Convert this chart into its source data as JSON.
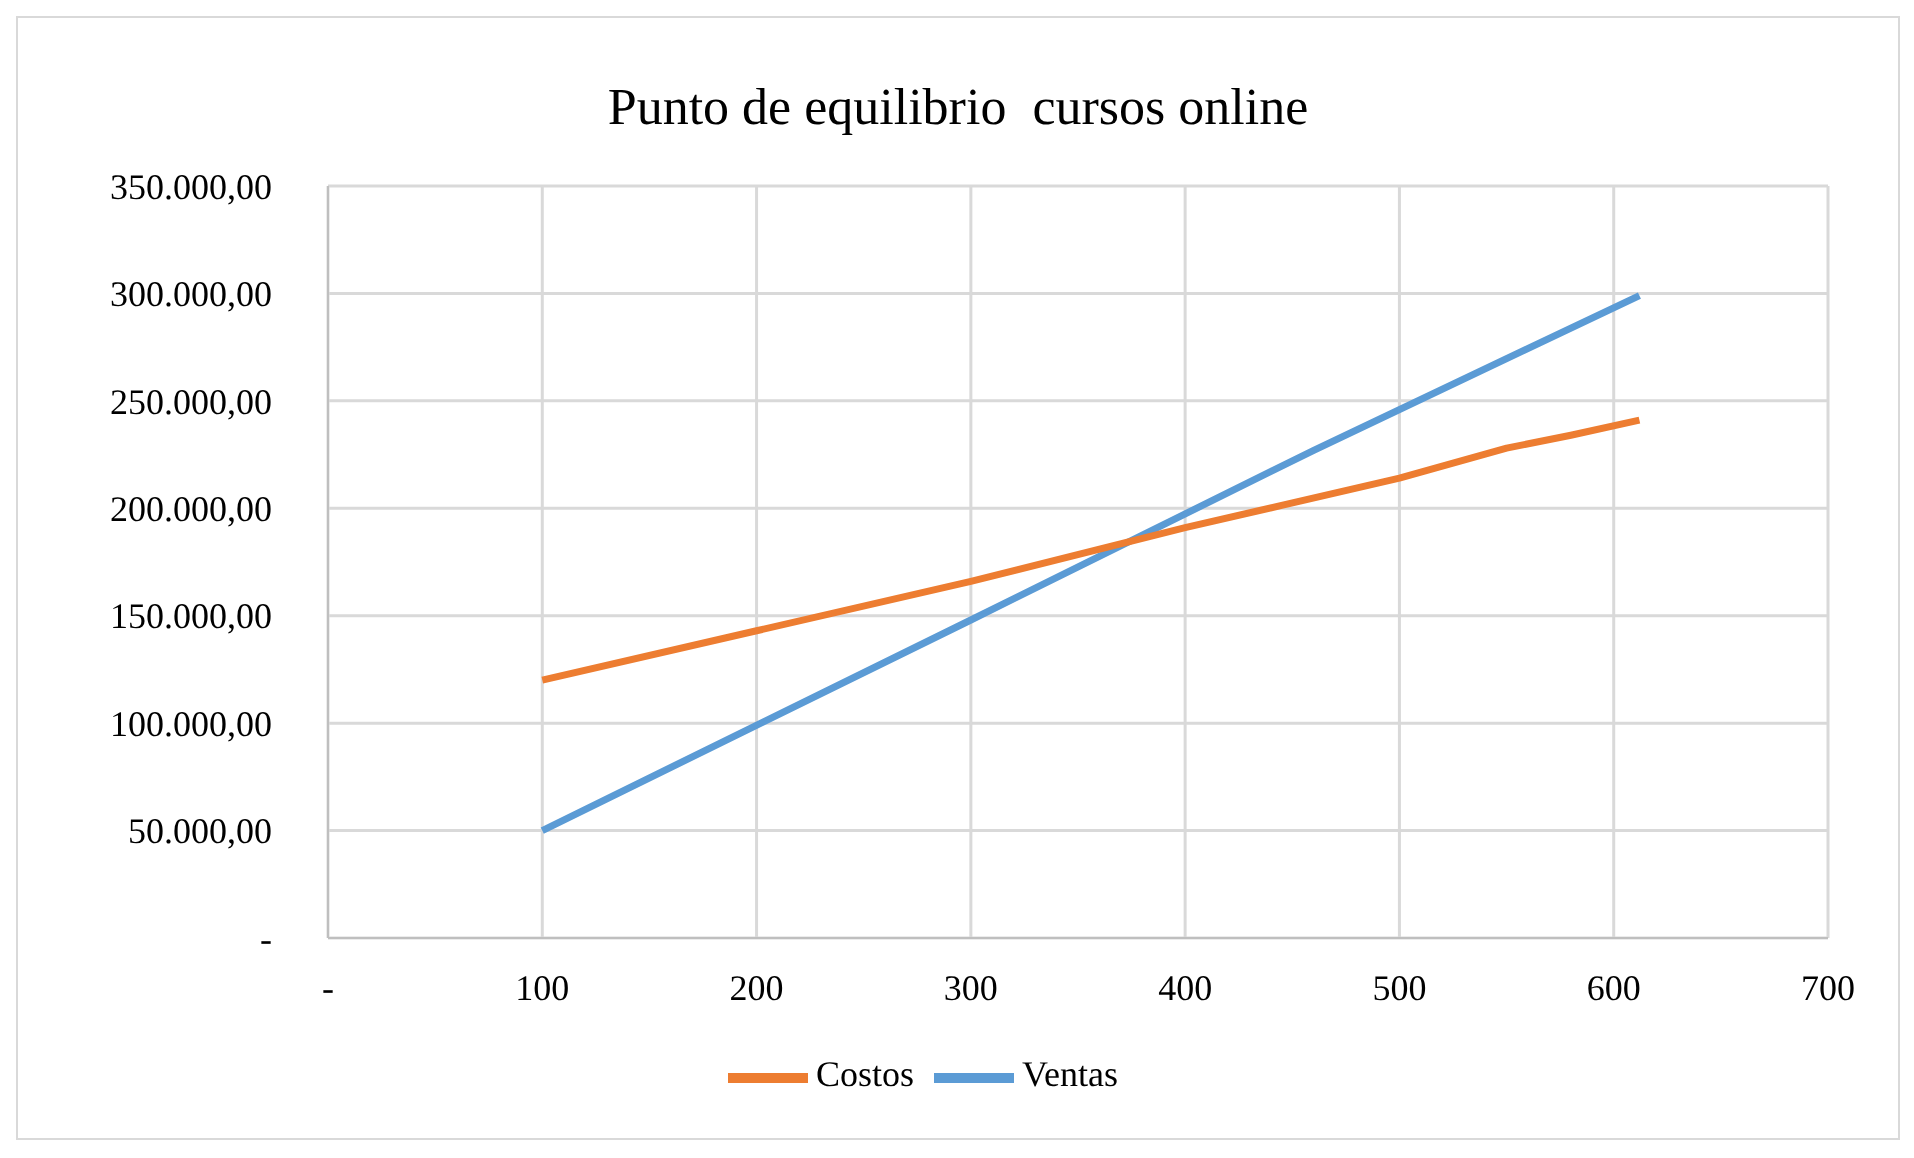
{
  "chart_data": {
    "type": "line",
    "title": "Punto de equilibrio  cursos online",
    "series": [
      {
        "name": "Ventas",
        "color": "#5b9bd5",
        "x": [
          100,
          300,
          460,
          612
        ],
        "values": [
          50000,
          148000,
          227000,
          299000
        ]
      },
      {
        "name": "Costos",
        "color": "#ed7d31",
        "x": [
          100,
          200,
          300,
          400,
          500,
          550,
          580,
          612
        ],
        "values": [
          120000,
          143000,
          166000,
          191000,
          214000,
          228000,
          234000,
          241000
        ]
      }
    ],
    "xlim": [
      0,
      700
    ],
    "xticks": [
      {
        "value": 0,
        "label": "-"
      },
      100,
      200,
      300,
      400,
      500,
      600,
      700
    ],
    "ylim": [
      0,
      350000
    ],
    "yticks": [
      {
        "value": 0,
        "label": "-"
      },
      {
        "value": 50000,
        "label": "50.000,00"
      },
      {
        "value": 100000,
        "label": "100.000,00"
      },
      {
        "value": 150000,
        "label": "150.000,00"
      },
      {
        "value": 200000,
        "label": "200.000,00"
      },
      {
        "value": 250000,
        "label": "250.000,00"
      },
      {
        "value": 300000,
        "label": "300.000,00"
      },
      {
        "value": 350000,
        "label": "350.000,00"
      }
    ],
    "grid": true,
    "legend": "bottom",
    "marker": "none",
    "line_style": "solid"
  }
}
